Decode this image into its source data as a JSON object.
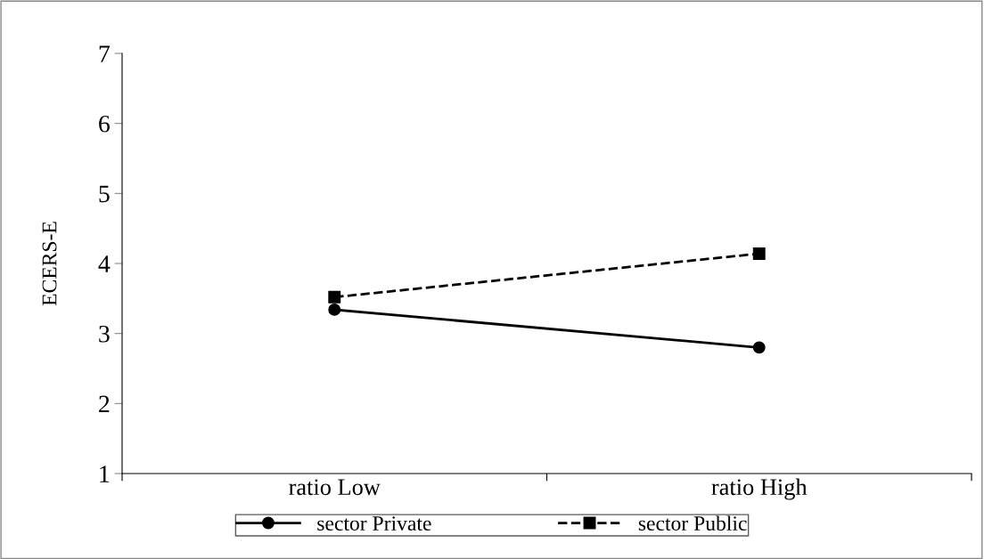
{
  "chart_data": {
    "type": "line",
    "ylabel": "ECERS-E",
    "categories": [
      "ratio Low",
      "ratio High"
    ],
    "series": [
      {
        "name": "sector Private",
        "color": "#000000",
        "values": [
          3.34,
          2.8
        ],
        "marker": "circle",
        "line_style": "solid"
      },
      {
        "name": "sector Public",
        "color": "#000000",
        "values": [
          3.52,
          4.14
        ],
        "marker": "square",
        "line_style": "dashed"
      }
    ],
    "ylim": [
      1,
      7
    ],
    "yticks": [
      1,
      2,
      3,
      4,
      5,
      6,
      7
    ],
    "grid": false,
    "legend": "bottom"
  }
}
